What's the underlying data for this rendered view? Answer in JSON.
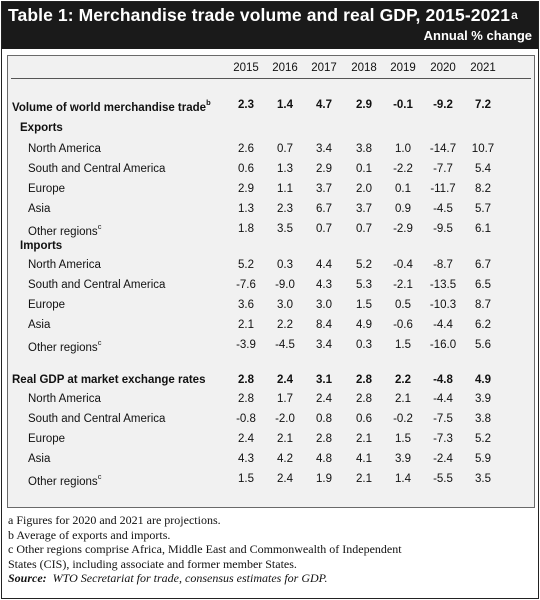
{
  "table": {
    "title": "Table 1: Merchandise trade volume and real GDP, 2015-2021",
    "title_sup": "a",
    "subtitle": "Annual % change",
    "years": [
      "2015",
      "2016",
      "2017",
      "2018",
      "2019",
      "2020",
      "2021"
    ],
    "sections": [
      {
        "label": "Volume of world merchandise trade",
        "label_sup": "b",
        "values": [
          "2.3",
          "1.4",
          "4.7",
          "2.9",
          "-0.1",
          "-9.2",
          "7.2"
        ]
      },
      {
        "label": "Exports",
        "rows": [
          {
            "label": "North America",
            "sup": "",
            "values": [
              "2.6",
              "0.7",
              "3.4",
              "3.8",
              "1.0",
              "-14.7",
              "10.7"
            ]
          },
          {
            "label": "South and Central America",
            "sup": "",
            "values": [
              "0.6",
              "1.3",
              "2.9",
              "0.1",
              "-2.2",
              "-7.7",
              "5.4"
            ]
          },
          {
            "label": "Europe",
            "sup": "",
            "values": [
              "2.9",
              "1.1",
              "3.7",
              "2.0",
              "0.1",
              "-11.7",
              "8.2"
            ]
          },
          {
            "label": "Asia",
            "sup": "",
            "values": [
              "1.3",
              "2.3",
              "6.7",
              "3.7",
              "0.9",
              "-4.5",
              "5.7"
            ]
          },
          {
            "label": "Other regions",
            "sup": "c",
            "values": [
              "1.8",
              "3.5",
              "0.7",
              "0.7",
              "-2.9",
              "-9.5",
              "6.1"
            ]
          }
        ]
      },
      {
        "label": "Imports",
        "rows": [
          {
            "label": "North America",
            "sup": "",
            "values": [
              "5.2",
              "0.3",
              "4.4",
              "5.2",
              "-0.4",
              "-8.7",
              "6.7"
            ]
          },
          {
            "label": "South and Central America",
            "sup": "",
            "values": [
              "-7.6",
              "-9.0",
              "4.3",
              "5.3",
              "-2.1",
              "-13.5",
              "6.5"
            ]
          },
          {
            "label": "Europe",
            "sup": "",
            "values": [
              "3.6",
              "3.0",
              "3.0",
              "1.5",
              "0.5",
              "-10.3",
              "8.7"
            ]
          },
          {
            "label": "Asia",
            "sup": "",
            "values": [
              "2.1",
              "2.2",
              "8.4",
              "4.9",
              "-0.6",
              "-4.4",
              "6.2"
            ]
          },
          {
            "label": "Other regions",
            "sup": "c",
            "values": [
              "-3.9",
              "-4.5",
              "3.4",
              "0.3",
              "1.5",
              "-16.0",
              "5.6"
            ]
          }
        ]
      },
      {
        "label": "Real GDP at market exchange rates",
        "values": [
          "2.8",
          "2.4",
          "3.1",
          "2.8",
          "2.2",
          "-4.8",
          "4.9"
        ],
        "rows": [
          {
            "label": "North America",
            "sup": "",
            "values": [
              "2.8",
              "1.7",
              "2.4",
              "2.8",
              "2.1",
              "-4.4",
              "3.9"
            ]
          },
          {
            "label": "South and Central America",
            "sup": "",
            "values": [
              "-0.8",
              "-2.0",
              "0.8",
              "0.6",
              "-0.2",
              "-7.5",
              "3.8"
            ]
          },
          {
            "label": "Europe",
            "sup": "",
            "values": [
              "2.4",
              "2.1",
              "2.8",
              "2.1",
              "1.5",
              "-7.3",
              "5.2"
            ]
          },
          {
            "label": "Asia",
            "sup": "",
            "values": [
              "4.3",
              "4.2",
              "4.8",
              "4.1",
              "3.9",
              "-2.4",
              "5.9"
            ]
          },
          {
            "label": "Other regions",
            "sup": "c",
            "values": [
              "1.5",
              "2.4",
              "1.9",
              "2.1",
              "1.4",
              "-5.5",
              "3.5"
            ]
          }
        ]
      }
    ]
  },
  "notes": {
    "a": "a  Figures for 2020 and 2021 are projections.",
    "b": "b  Average of exports and imports.",
    "c1": "c  Other regions comprise Africa, Middle East and Commonwealth of Independent",
    "c2": "States (CIS), including associate and former member States.",
    "source_label": "Source:",
    "source_text": "WTO Secretariat for trade, consensus estimates for GDP."
  }
}
